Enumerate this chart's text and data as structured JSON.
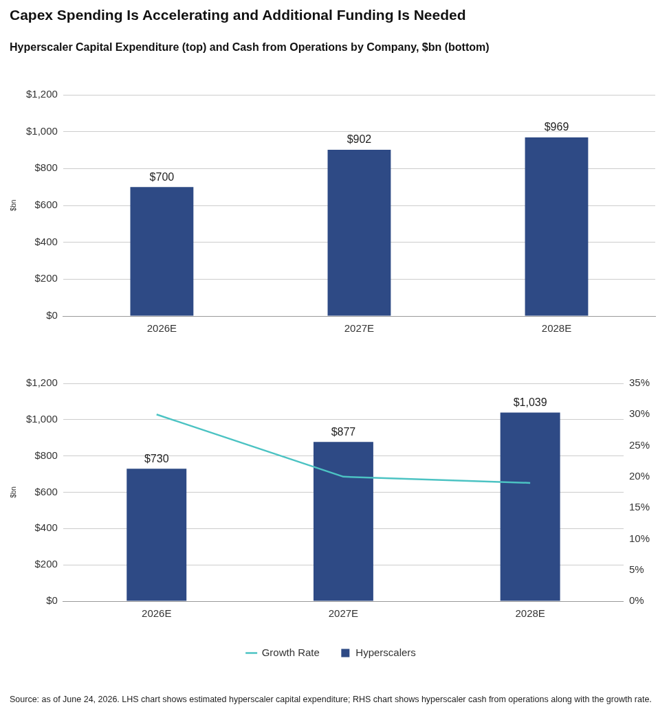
{
  "chart_data": [
    {
      "type": "bar",
      "title": "Capex Spending Is Accelerating and Additional Funding Is Needed",
      "subtitle": "Hyperscaler Capital Expenditure (top) and Cash from Operations by Company, $bn (bottom)",
      "ylabel": "$bn",
      "categories": [
        "2026E",
        "2027E",
        "2028E"
      ],
      "series": [
        {
          "color": "#2e4a85",
          "values": [
            700,
            902,
            969
          ],
          "value_labels": [
            "$700",
            "$902",
            "$969"
          ]
        }
      ],
      "ylim": [
        0,
        1200
      ],
      "yticks": [
        {
          "value": 0,
          "label": "$0"
        },
        {
          "value": 200,
          "label": "$200"
        },
        {
          "value": 400,
          "label": "$400"
        },
        {
          "value": 600,
          "label": "$600"
        },
        {
          "value": 800,
          "label": "$800"
        },
        {
          "value": 1000,
          "label": "$1,000"
        },
        {
          "value": 1200,
          "label": "$1,200"
        }
      ],
      "grid": "y",
      "legend": false
    },
    {
      "type": "bar",
      "ylabel": "$bn",
      "categories": [
        "2026E",
        "2027E",
        "2028E"
      ],
      "series": [
        {
          "name": "Hyperscalers",
          "color": "#2e4a85",
          "values": [
            730,
            877,
            1039
          ],
          "value_labels": [
            "$730",
            "$877",
            "$1,039"
          ]
        },
        {
          "name": "Growth Rate",
          "type": "line",
          "axis": "y2",
          "color": "#4cc3c3",
          "values": [
            30,
            20,
            19
          ]
        }
      ],
      "ylim": [
        0,
        1200
      ],
      "yticks": [
        {
          "value": 0,
          "label": "$0"
        },
        {
          "value": 200,
          "label": "$200"
        },
        {
          "value": 400,
          "label": "$400"
        },
        {
          "value": 600,
          "label": "$600"
        },
        {
          "value": 800,
          "label": "$800"
        },
        {
          "value": 1000,
          "label": "$1,000"
        },
        {
          "value": 1200,
          "label": "$1,200"
        }
      ],
      "y2lim": [
        0,
        35
      ],
      "y2ticks": [
        {
          "value": 0,
          "label": "0%"
        },
        {
          "value": 5,
          "label": "5%"
        },
        {
          "value": 10,
          "label": "10%"
        },
        {
          "value": 15,
          "label": "15%"
        },
        {
          "value": 20,
          "label": "20%"
        },
        {
          "value": 25,
          "label": "25%"
        },
        {
          "value": 30,
          "label": "30%"
        },
        {
          "value": 35,
          "label": "35%"
        }
      ],
      "grid": "y",
      "legend": "bottom",
      "marker": "none",
      "line_style": "solid",
      "annotations": [
        "Source: as of June 24, 2026. LHS chart shows estimated hyperscaler capital expenditure; RHS chart shows hyperscaler cash from operations along with the growth rate."
      ]
    }
  ]
}
